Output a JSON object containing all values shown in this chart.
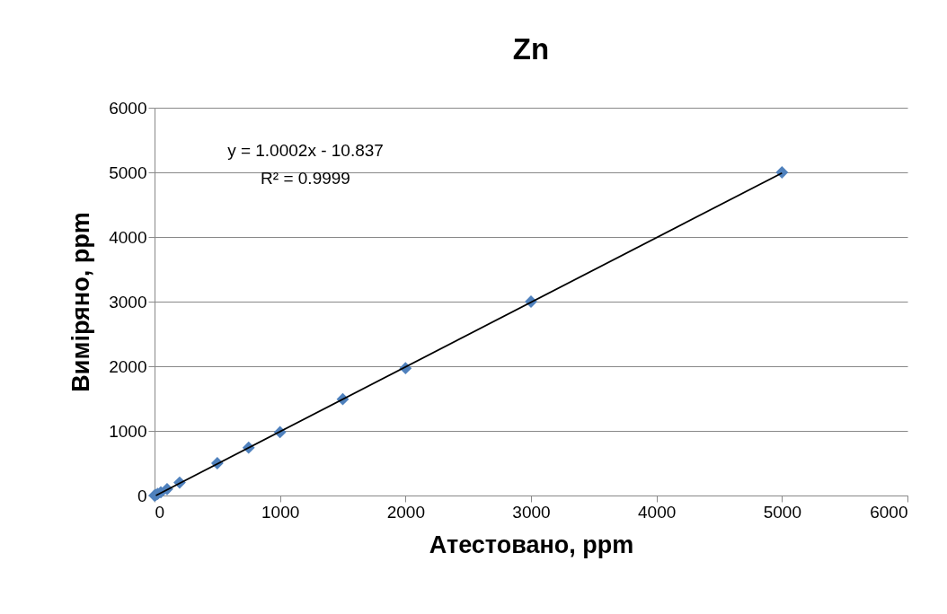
{
  "chart_data": {
    "type": "scatter",
    "title": "Zn",
    "xlabel": "Атестовано, ppm",
    "ylabel": "Виміряно, ppm",
    "x": [
      0,
      10,
      25,
      50,
      100,
      200,
      500,
      750,
      1000,
      1500,
      2000,
      3000,
      5000
    ],
    "series": [
      {
        "color": "#4f81bd",
        "marker": "diamond",
        "values": [
          0,
          10,
          25,
          50,
          100,
          200,
          500,
          740,
          980,
          1490,
          1970,
          3000,
          5000
        ]
      },
      {
        "type": "line",
        "color": "#000000",
        "marker": "none",
        "x": [
          11,
          5000
        ],
        "values": [
          0,
          4990
        ]
      }
    ],
    "annotations": [
      "y = 1.0002x - 10.837",
      "R² = 0.9999"
    ],
    "xlim": [
      0,
      6000
    ],
    "xticks": [
      0,
      1000,
      2000,
      3000,
      4000,
      5000,
      6000
    ],
    "ylim": [
      0,
      6000
    ],
    "yticks": [
      0,
      1000,
      2000,
      3000,
      4000,
      5000,
      6000
    ],
    "grid": "y",
    "legend": false
  }
}
